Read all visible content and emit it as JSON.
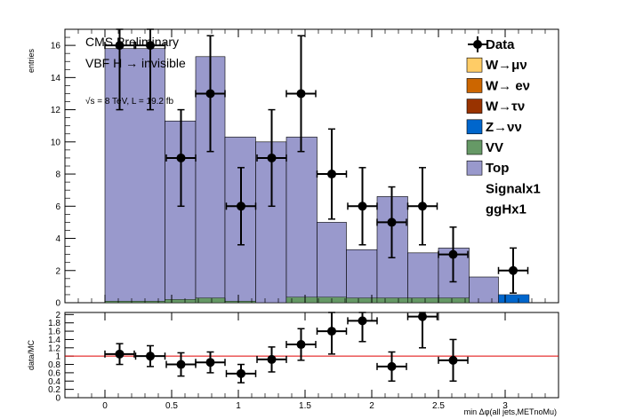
{
  "header": {
    "line1": "CMS Preliminary",
    "line2": "VBF H → invisible",
    "energy": "√s = 8 TeV, L = 19.2 fb"
  },
  "legend": [
    {
      "label": "Data",
      "kind": "data",
      "color": "#000000"
    },
    {
      "label": "W→μν",
      "kind": "fill",
      "color": "#ffcc66"
    },
    {
      "label": "W→ eν",
      "kind": "fill",
      "color": "#cc6600"
    },
    {
      "label": "W→τν",
      "kind": "fill",
      "color": "#993300"
    },
    {
      "label": "Z→νν",
      "kind": "fill",
      "color": "#0066cc"
    },
    {
      "label": "VV",
      "kind": "fill",
      "color": "#669966"
    },
    {
      "label": "Top",
      "kind": "fill",
      "color": "#9999cc"
    },
    {
      "label": "Signalx1",
      "kind": "none",
      "color": ""
    },
    {
      "label": "ggHx1",
      "kind": "none",
      "color": ""
    }
  ],
  "chart_data": [
    {
      "type": "bar",
      "title": "",
      "xlabel": "",
      "ylabel": "entries",
      "xlim": [
        -0.3,
        3.4
      ],
      "ylim": [
        0,
        17
      ],
      "bin_edges": [
        0,
        0.15,
        0.3,
        0.45,
        0.6,
        0.75,
        0.9,
        1.05,
        1.2,
        1.35,
        1.5,
        1.65,
        1.8,
        1.95,
        2.1,
        2.25,
        2.4,
        2.55,
        2.7,
        2.85,
        3.0,
        3.15
      ],
      "top_bins": [
        {
          "lo": 0,
          "hi": 0.45,
          "value": 15.8
        },
        {
          "lo": 0.45,
          "hi": 0.68,
          "value": 11.3
        },
        {
          "lo": 0.68,
          "hi": 0.9,
          "value": 15.3
        },
        {
          "lo": 0.9,
          "hi": 1.13,
          "value": 10.3
        },
        {
          "lo": 1.13,
          "hi": 1.36,
          "value": 10.0
        },
        {
          "lo": 1.36,
          "hi": 1.59,
          "value": 10.3
        },
        {
          "lo": 1.59,
          "hi": 1.81,
          "value": 5.0
        },
        {
          "lo": 1.81,
          "hi": 2.04,
          "value": 3.3
        },
        {
          "lo": 2.04,
          "hi": 2.27,
          "value": 6.6
        },
        {
          "lo": 2.27,
          "hi": 2.5,
          "value": 3.1
        },
        {
          "lo": 2.5,
          "hi": 2.73,
          "value": 3.4
        },
        {
          "lo": 2.73,
          "hi": 2.95,
          "value": 1.6
        }
      ],
      "vv_bins": [
        {
          "lo": 0,
          "hi": 0.45,
          "value": 0.1
        },
        {
          "lo": 0.45,
          "hi": 0.68,
          "value": 0.2
        },
        {
          "lo": 0.68,
          "hi": 0.9,
          "value": 0.3
        },
        {
          "lo": 0.9,
          "hi": 1.13,
          "value": 0.1
        },
        {
          "lo": 1.36,
          "hi": 1.59,
          "value": 0.35
        },
        {
          "lo": 1.59,
          "hi": 1.81,
          "value": 0.35
        },
        {
          "lo": 1.81,
          "hi": 2.04,
          "value": 0.3
        },
        {
          "lo": 2.04,
          "hi": 2.27,
          "value": 0.3
        },
        {
          "lo": 2.27,
          "hi": 2.5,
          "value": 0.3
        },
        {
          "lo": 2.5,
          "hi": 2.73,
          "value": 0.3
        }
      ],
      "z_bins": [
        {
          "lo": 2.95,
          "hi": 3.18,
          "value": 0.5
        }
      ],
      "series": [
        {
          "name": "Data",
          "x": [
            0.11,
            0.34,
            0.57,
            0.79,
            1.02,
            1.25,
            1.47,
            1.7,
            1.93,
            2.15,
            2.38,
            2.61,
            3.06
          ],
          "y": [
            16,
            16,
            9,
            13,
            6,
            9,
            13,
            8,
            6,
            5,
            6,
            3,
            2
          ],
          "xerr": [
            0.11,
            0.11,
            0.11,
            0.11,
            0.11,
            0.11,
            0.11,
            0.11,
            0.11,
            0.11,
            0.11,
            0.11,
            0.11
          ],
          "yerr": [
            4,
            4,
            3,
            3.6,
            2.4,
            3,
            3.6,
            2.8,
            2.4,
            2.2,
            2.4,
            1.7,
            1.4
          ]
        }
      ],
      "yticks": [
        0,
        2,
        4,
        6,
        8,
        10,
        12,
        14,
        16
      ],
      "grid": false,
      "legend_position": "top-right"
    },
    {
      "type": "scatter",
      "title": "",
      "xlabel": "min Δφ(all jets,METnoMu)",
      "ylabel": "data/MC",
      "xlim": [
        -0.3,
        3.4
      ],
      "ylim": [
        0,
        2.05
      ],
      "reference_line": 1.0,
      "series": [
        {
          "name": "",
          "x": [
            0.11,
            0.34,
            0.57,
            0.79,
            1.02,
            1.25,
            1.47,
            1.7,
            1.93,
            2.15,
            2.38,
            2.61
          ],
          "y": [
            1.05,
            1.0,
            0.8,
            0.85,
            0.58,
            0.92,
            1.28,
            1.6,
            1.85,
            0.75,
            1.95,
            0.9
          ],
          "xerr": [
            0.11,
            0.11,
            0.11,
            0.11,
            0.11,
            0.11,
            0.11,
            0.11,
            0.11,
            0.11,
            0.11,
            0.11
          ],
          "yerr": [
            0.25,
            0.25,
            0.28,
            0.25,
            0.22,
            0.3,
            0.38,
            0.55,
            0.5,
            0.35,
            0.75,
            0.5
          ]
        }
      ],
      "yticks": [
        0,
        0.2,
        0.4,
        0.6,
        0.8,
        1,
        1.2,
        1.4,
        1.6,
        1.8,
        2
      ],
      "xticks": [
        0,
        0.5,
        1,
        1.5,
        2,
        2.5,
        3
      ],
      "grid": false
    }
  ]
}
